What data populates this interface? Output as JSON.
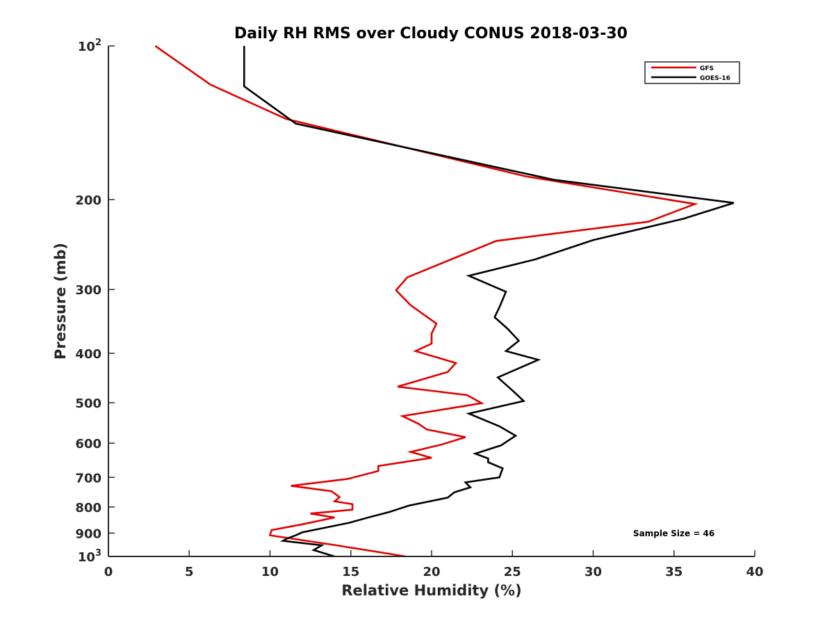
{
  "chart_data": {
    "type": "line",
    "title": "Daily RH RMS over Cloudy CONUS 2018-03-30",
    "xlabel": "Relative Humidity (%)",
    "ylabel": "Pressure (mb)",
    "xlim": [
      0,
      40
    ],
    "ylim": [
      100,
      1000
    ],
    "y_scale": "log",
    "y_reversed": true,
    "grid": false,
    "legend_position": "top-right",
    "x_ticks": [
      0,
      5,
      10,
      15,
      20,
      25,
      30,
      35,
      40
    ],
    "y_ticks": [
      {
        "value": 100,
        "base": "10",
        "exp": "2"
      },
      {
        "value": 200,
        "label": "200"
      },
      {
        "value": 300,
        "label": "300"
      },
      {
        "value": 400,
        "label": "400"
      },
      {
        "value": 500,
        "label": "500"
      },
      {
        "value": 600,
        "label": "600"
      },
      {
        "value": 700,
        "label": "700"
      },
      {
        "value": 800,
        "label": "800"
      },
      {
        "value": 900,
        "label": "900"
      },
      {
        "value": 1000,
        "base": "10",
        "exp": "3"
      }
    ],
    "annotation": "Sample Size = 46",
    "series": [
      {
        "name": "GFS",
        "color": "#e00000",
        "points": [
          [
            2.9,
            100
          ],
          [
            6.3,
            119
          ],
          [
            11.0,
            139
          ],
          [
            25.8,
            180
          ],
          [
            36.3,
            204
          ],
          [
            33.4,
            221
          ],
          [
            24.0,
            241
          ],
          [
            18.5,
            284
          ],
          [
            17.8,
            301
          ],
          [
            18.7,
            322
          ],
          [
            20.3,
            350
          ],
          [
            20.0,
            366
          ],
          [
            20.0,
            383
          ],
          [
            19.0,
            396
          ],
          [
            21.5,
            418
          ],
          [
            21.0,
            435
          ],
          [
            17.9,
            465
          ],
          [
            22.2,
            483
          ],
          [
            23.1,
            501
          ],
          [
            18.2,
            531
          ],
          [
            19.2,
            550
          ],
          [
            19.7,
            564
          ],
          [
            22.1,
            584
          ],
          [
            20.6,
            604
          ],
          [
            18.7,
            624
          ],
          [
            20.0,
            641
          ],
          [
            16.7,
            665
          ],
          [
            16.7,
            680
          ],
          [
            14.8,
            705
          ],
          [
            11.3,
            727
          ],
          [
            13.8,
            745
          ],
          [
            14.3,
            765
          ],
          [
            14.0,
            780
          ],
          [
            15.1,
            790
          ],
          [
            15.1,
            810
          ],
          [
            12.5,
            824
          ],
          [
            14.0,
            839
          ],
          [
            12.0,
            865
          ],
          [
            10.1,
            888
          ],
          [
            10.0,
            909
          ],
          [
            14.0,
            950
          ],
          [
            18.4,
            1000
          ]
        ]
      },
      {
        "name": "GOES-16",
        "color": "#000000",
        "points": [
          [
            8.4,
            100
          ],
          [
            8.4,
            120
          ],
          [
            11.6,
            142
          ],
          [
            27.6,
            183
          ],
          [
            38.7,
            203
          ],
          [
            35.6,
            218
          ],
          [
            30.0,
            240
          ],
          [
            26.4,
            262
          ],
          [
            22.3,
            282
          ],
          [
            24.6,
            303
          ],
          [
            24.2,
            325
          ],
          [
            23.9,
            340
          ],
          [
            24.7,
            358
          ],
          [
            25.4,
            378
          ],
          [
            24.6,
            396
          ],
          [
            26.6,
            412
          ],
          [
            24.1,
            446
          ],
          [
            25.1,
            476
          ],
          [
            25.7,
            496
          ],
          [
            22.3,
            525
          ],
          [
            24.2,
            556
          ],
          [
            25.2,
            580
          ],
          [
            24.3,
            606
          ],
          [
            22.7,
            629
          ],
          [
            23.5,
            643
          ],
          [
            23.5,
            654
          ],
          [
            24.4,
            672
          ],
          [
            24.2,
            700
          ],
          [
            22.1,
            716
          ],
          [
            22.4,
            732
          ],
          [
            21.4,
            749
          ],
          [
            21.0,
            767
          ],
          [
            18.6,
            795
          ],
          [
            17.4,
            818
          ],
          [
            16.2,
            837
          ],
          [
            14.9,
            859
          ],
          [
            12.0,
            897
          ],
          [
            11.6,
            909
          ],
          [
            11.1,
            921
          ],
          [
            10.8,
            932
          ],
          [
            13.2,
            951
          ],
          [
            12.7,
            972
          ],
          [
            14.0,
            1000
          ]
        ]
      }
    ]
  }
}
